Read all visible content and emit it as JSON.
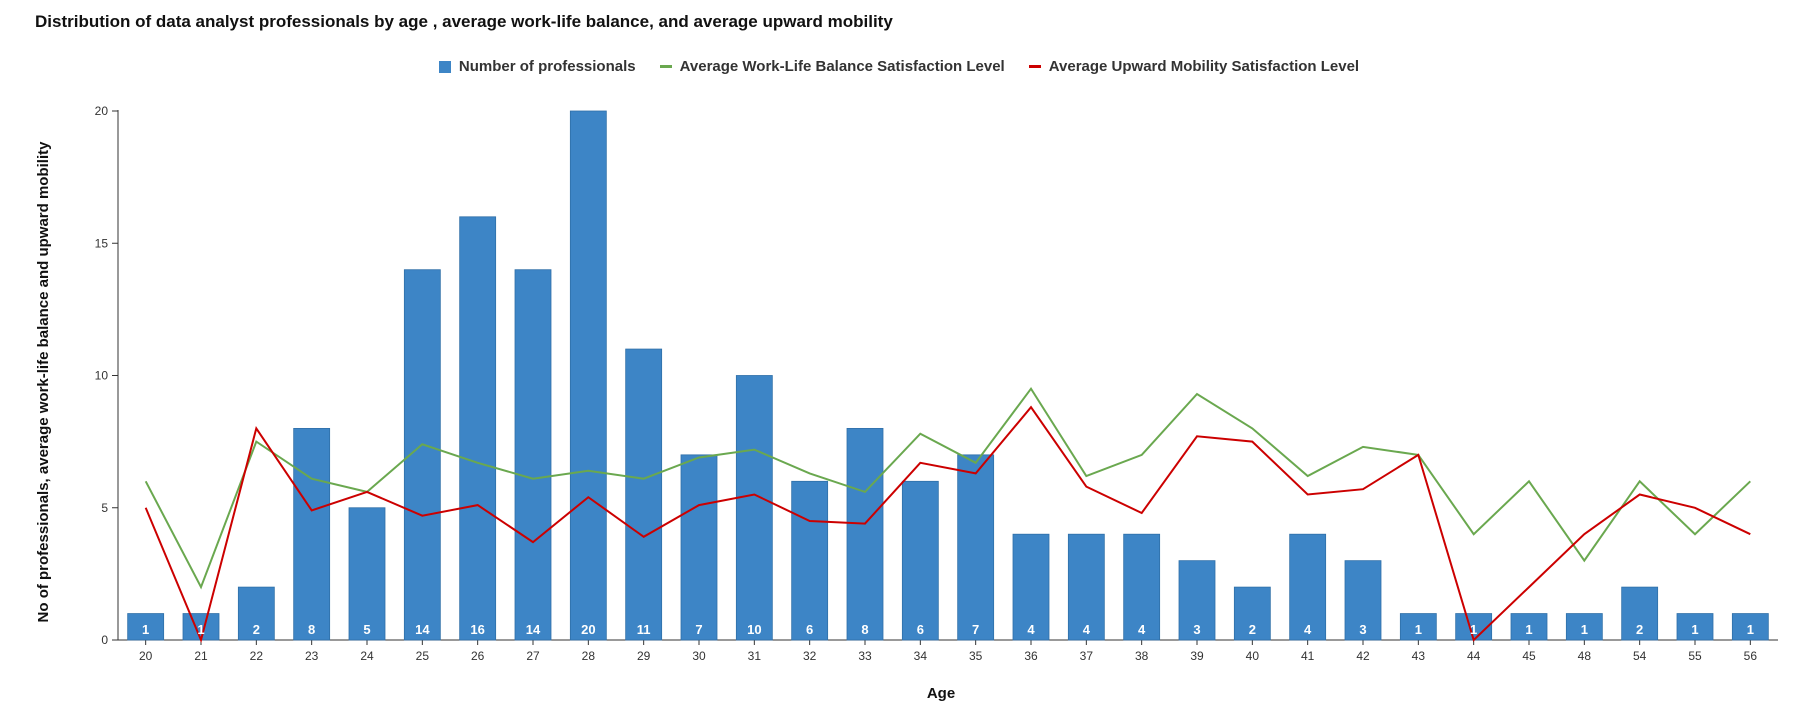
{
  "colors": {
    "bars": "#3d85c6",
    "work_life": "#6aa84f",
    "upward": "#cc0000"
  },
  "chart_data": {
    "type": "bar",
    "title": "Distribution of data analyst professionals by age , average work-life balance, and average upward mobility",
    "xlabel": "Age",
    "ylabel": "No of professionals, average work-life balance and upward mobility",
    "ylim": [
      0,
      20
    ],
    "yticks": [
      0,
      5,
      10,
      15,
      20
    ],
    "legend_position": "top-center",
    "grid": false,
    "categories": [
      "20",
      "21",
      "22",
      "23",
      "24",
      "25",
      "26",
      "27",
      "28",
      "29",
      "30",
      "31",
      "32",
      "33",
      "34",
      "35",
      "36",
      "37",
      "38",
      "39",
      "40",
      "41",
      "42",
      "43",
      "44",
      "45",
      "48",
      "54",
      "55",
      "56"
    ],
    "series": [
      {
        "name": "Number of professionals",
        "type": "bar",
        "values": [
          1,
          1,
          2,
          8,
          5,
          14,
          16,
          14,
          20,
          11,
          7,
          10,
          6,
          8,
          6,
          7,
          4,
          4,
          4,
          3,
          2,
          4,
          3,
          1,
          1,
          1,
          1,
          2,
          1,
          1
        ]
      },
      {
        "name": "Average Work-Life Balance Satisfaction Level",
        "type": "line",
        "values": [
          6,
          2,
          7.5,
          6.1,
          5.6,
          7.4,
          6.7,
          6.1,
          6.4,
          6.1,
          6.9,
          7.2,
          6.3,
          5.6,
          7.8,
          6.7,
          9.5,
          6.2,
          7,
          9.3,
          8,
          6.2,
          7.3,
          7,
          4,
          6,
          3,
          6,
          4,
          6
        ]
      },
      {
        "name": "Average Upward Mobility Satisfaction Level",
        "type": "line",
        "values": [
          5,
          0,
          8,
          4.9,
          5.6,
          4.7,
          5.1,
          3.7,
          5.4,
          3.9,
          5.1,
          5.5,
          4.5,
          4.4,
          6.7,
          6.3,
          8.8,
          5.8,
          4.8,
          7.7,
          7.5,
          5.5,
          5.7,
          7,
          0,
          2,
          4,
          5.5,
          5,
          4
        ]
      }
    ]
  }
}
